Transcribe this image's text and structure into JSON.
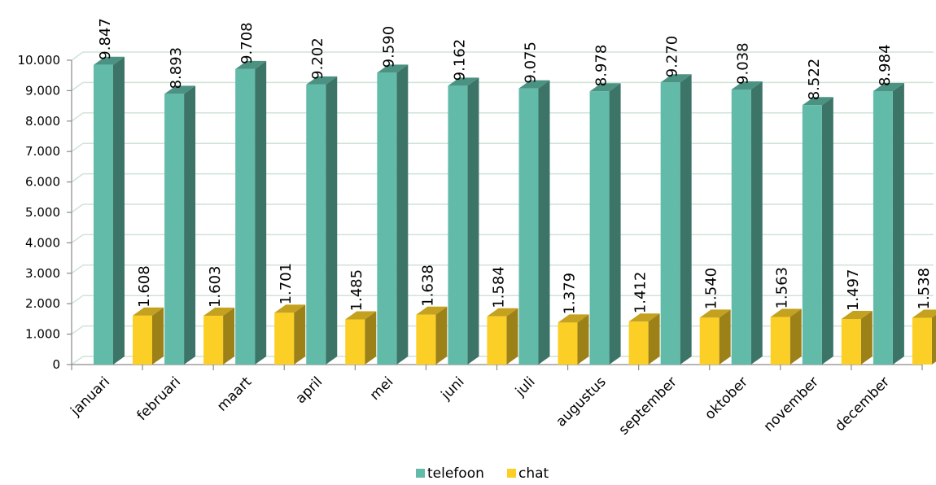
{
  "chart_data": {
    "type": "bar",
    "categories": [
      "januari",
      "februari",
      "maart",
      "april",
      "mei",
      "juni",
      "juli",
      "augustus",
      "september",
      "oktober",
      "november",
      "december"
    ],
    "series": [
      {
        "name": "telefoon",
        "color": "#62bba8",
        "values": [
          9847,
          8893,
          9708,
          9202,
          9590,
          9162,
          9075,
          8978,
          9270,
          9038,
          8522,
          8984
        ],
        "labels": [
          "9.847",
          "8.893",
          "9.708",
          "9.202",
          "9.590",
          "9.162",
          "9.075",
          "8.978",
          "9.270",
          "9.038",
          "8.522",
          "8.984"
        ]
      },
      {
        "name": "chat",
        "color": "#fbcf26",
        "values": [
          1608,
          1603,
          1701,
          1485,
          1638,
          1584,
          1379,
          1412,
          1540,
          1563,
          1497,
          1538
        ],
        "labels": [
          "1.608",
          "1.603",
          "1.701",
          "1.485",
          "1.638",
          "1.584",
          "1.379",
          "1.412",
          "1.540",
          "1.563",
          "1.497",
          "1.538"
        ]
      }
    ],
    "ylim": [
      0,
      10000
    ],
    "yticks": [
      0,
      1000,
      2000,
      3000,
      4000,
      5000,
      6000,
      7000,
      8000,
      9000,
      10000
    ],
    "ytick_labels": [
      "0",
      "1.000",
      "2.000",
      "3.000",
      "4.000",
      "5.000",
      "6.000",
      "7.000",
      "8.000",
      "9.000",
      "10.000"
    ],
    "grid": true,
    "legend_position": "bottom",
    "style": "3d-columns"
  }
}
